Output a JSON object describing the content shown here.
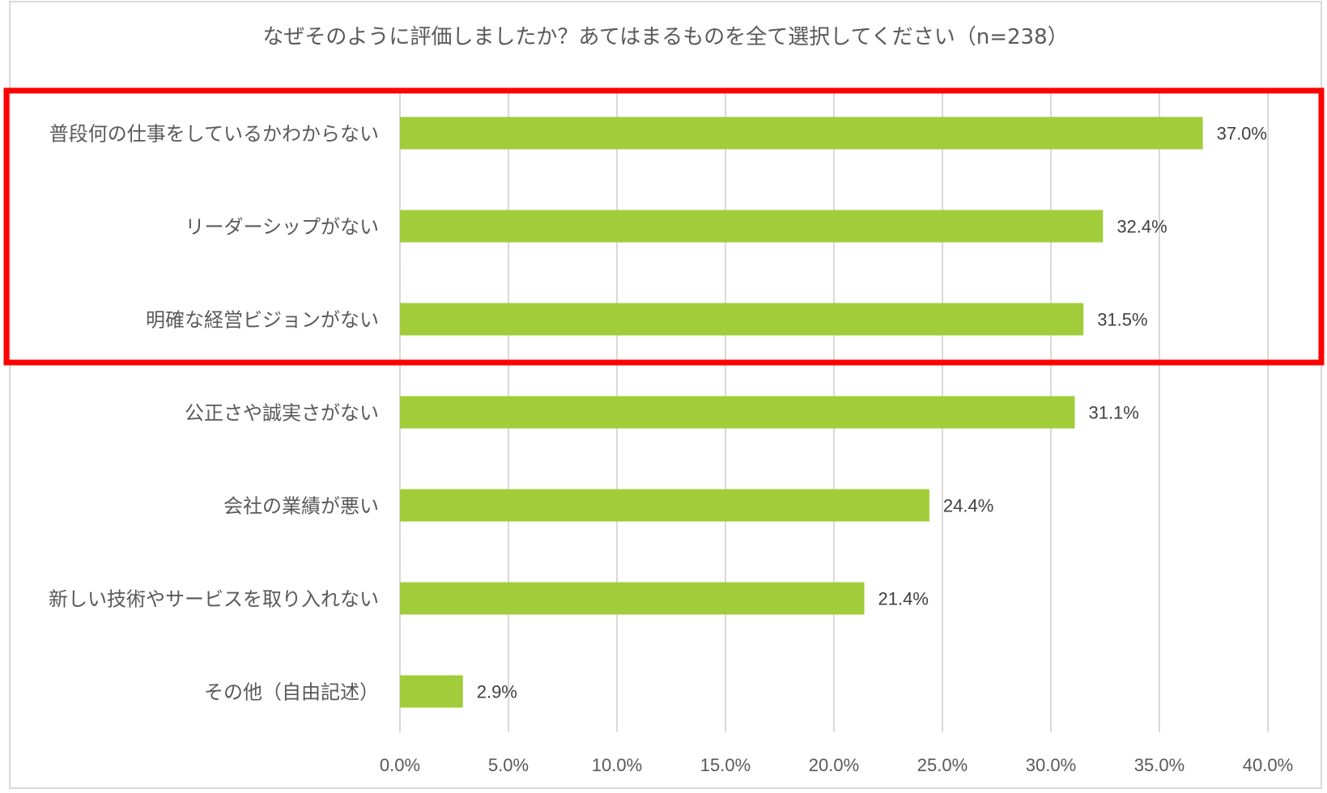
{
  "chart_data": {
    "type": "bar",
    "orientation": "horizontal",
    "title": "なぜそのように評価しましたか？あてはまるものを全て選択してください（n=238）",
    "categories": [
      "普段何の仕事をしているかわからない",
      "リーダーシップがない",
      "明確な経営ビジョンがない",
      "公正さや誠実さがない",
      "会社の業績が悪い",
      "新しい技術やサービスを取り入れない",
      "その他（自由記述）"
    ],
    "values": [
      37.0,
      32.4,
      31.5,
      31.1,
      24.4,
      21.4,
      2.9
    ],
    "data_labels": [
      "37.0%",
      "32.4%",
      "31.5%",
      "31.1%",
      "24.4%",
      "21.4%",
      "2.9%"
    ],
    "xlim": [
      0,
      40
    ],
    "x_ticks": [
      0,
      5,
      10,
      15,
      20,
      25,
      30,
      35,
      40
    ],
    "x_tick_labels": [
      "0.0%",
      "5.0%",
      "10.0%",
      "15.0%",
      "20.0%",
      "25.0%",
      "30.0%",
      "35.0%",
      "40.0%"
    ],
    "xlabel": "",
    "ylabel": "",
    "grid": "vertical",
    "legend": "none",
    "highlighted_categories": [
      0,
      1,
      2
    ]
  },
  "colors": {
    "bar": "#a2cd3a",
    "highlight": "#ff0000",
    "grid": "#d9d9d9",
    "text": "#595959"
  }
}
